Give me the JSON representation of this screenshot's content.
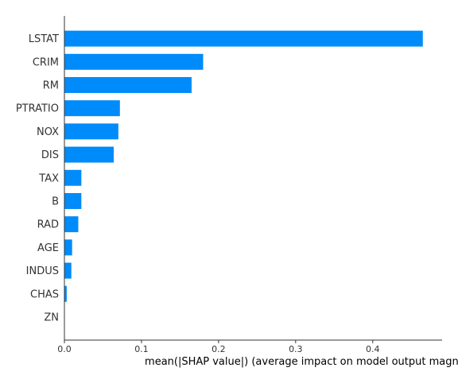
{
  "chart_data": {
    "type": "bar",
    "orientation": "horizontal",
    "categories": [
      "LSTAT",
      "CRIM",
      "RM",
      "PTRATIO",
      "NOX",
      "DIS",
      "TAX",
      "B",
      "RAD",
      "AGE",
      "INDUS",
      "CHAS",
      "ZN"
    ],
    "values": [
      0.465,
      0.18,
      0.165,
      0.072,
      0.07,
      0.064,
      0.022,
      0.022,
      0.018,
      0.01,
      0.009,
      0.003,
      0.0
    ],
    "xlabel": "mean(|SHAP value|) (average impact on model output magnitude)",
    "ylabel": "",
    "xlim": [
      0,
      0.49
    ],
    "xticks": [
      0.0,
      0.1,
      0.2,
      0.3,
      0.4
    ],
    "xtick_labels": [
      "0.0",
      "0.1",
      "0.2",
      "0.3",
      "0.4"
    ],
    "bar_color": "#008bfb",
    "axis_color": "#333333",
    "grid": false,
    "legend": "none"
  }
}
